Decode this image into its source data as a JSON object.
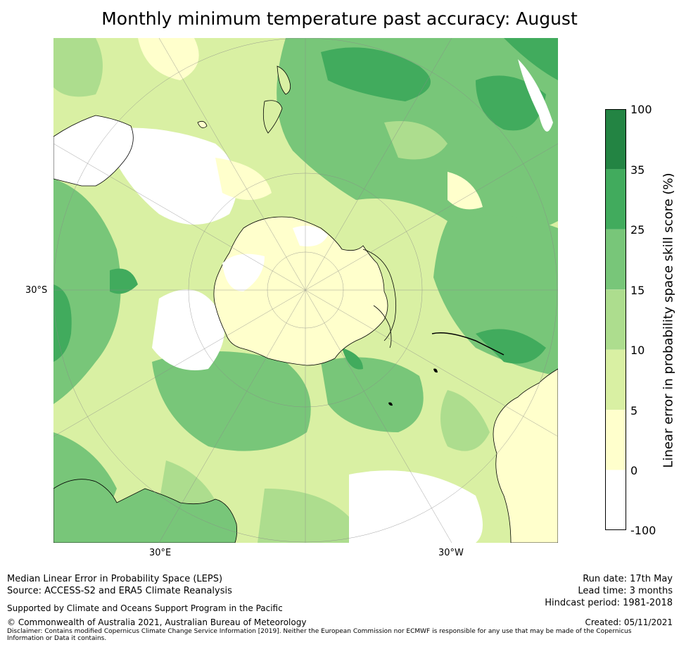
{
  "title": "Monthly minimum temperature past accuracy: August",
  "map": {
    "projection": "south-polar-stereographic",
    "latitude_labels": [
      "30°S"
    ],
    "longitude_labels": [
      "30°E",
      "30°W"
    ],
    "icons": [
      "antarctica-outline",
      "australia-coastline",
      "south-america-coastline",
      "new-zealand-coastline",
      "africa-coastline"
    ]
  },
  "colorbar": {
    "label": "Linear error in probability space skill score (%)",
    "ticks": [
      "100",
      "35",
      "25",
      "15",
      "10",
      "5",
      "0",
      "-100"
    ],
    "bins": [
      {
        "range": "-100 to 0",
        "color": "#ffffff"
      },
      {
        "range": "0 to 5",
        "color": "#ffffcc"
      },
      {
        "range": "5 to 10",
        "color": "#d9f0a3"
      },
      {
        "range": "10 to 15",
        "color": "#addd8e"
      },
      {
        "range": "15 to 25",
        "color": "#78c679"
      },
      {
        "range": "25 to 35",
        "color": "#41ab5d"
      },
      {
        "range": "35 to 100",
        "color": "#238443"
      }
    ]
  },
  "footer": {
    "line1": "Median Linear Error in Probability Space (LEPS)",
    "line2": "Source: ACCESS-S2 and ERA5 Climate Reanalysis",
    "supported": "Supported by Climate and Oceans Support Program in the Pacific",
    "copyright": "© Commonwealth of Australia 2021, Australian Bureau of Meteorology",
    "disclaimer": "Disclaimer: Contains modified Copernicus Climate Change Service Information [2019]. Neither the European Commission nor ECMWF is responsible for any use that may be made of the Copernicus Information or Data it contains.",
    "run_date": "Run date: 17th May",
    "lead_time": "Lead time: 3 months",
    "hindcast": "Hindcast period: 1981-2018",
    "created": "Created: 05/11/2021"
  }
}
